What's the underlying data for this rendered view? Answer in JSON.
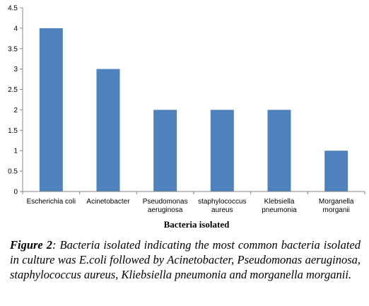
{
  "chart_data": {
    "type": "bar",
    "categories": [
      [
        "Escherichia coli"
      ],
      [
        "Acinetobacter"
      ],
      [
        "Pseudomonas",
        "aeruginosa"
      ],
      [
        "staphylococcus",
        "aureus"
      ],
      [
        "Klebsiella",
        "pneumonia"
      ],
      [
        "Morganella",
        "morganii"
      ]
    ],
    "values": [
      4,
      3,
      2,
      2,
      2,
      1
    ],
    "xlabel": "Bacteria isolated",
    "ylabel": "",
    "ylim": [
      0,
      4.5
    ],
    "yticks": [
      "0",
      "0.5",
      "1",
      "1.5",
      "2",
      "2.5",
      "3",
      "3.5",
      "4",
      "4.5"
    ],
    "grid": false,
    "legend": "none",
    "bar_color": "#4F81BD"
  },
  "caption": {
    "label": "Figure 2",
    "text": ": Bacteria isolated  indicating the most common bacteria isolated in culture was E.coli followed by Acinetobacter, Pseudomonas aeruginosa, staphylococcus aureus, Kliebsiella pneumonia and morganella morganii."
  }
}
